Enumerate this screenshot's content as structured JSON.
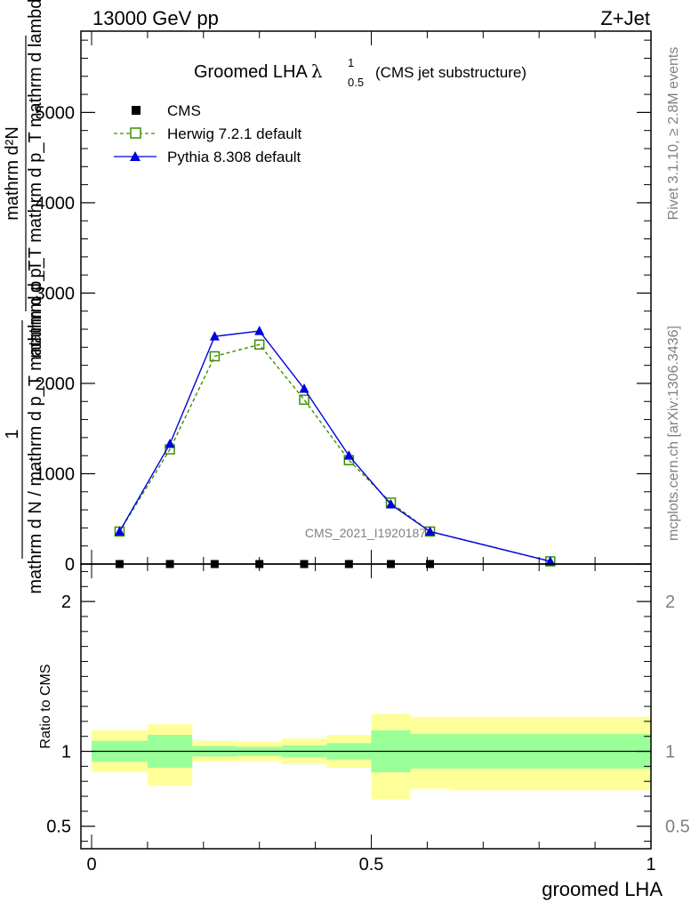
{
  "header": {
    "left": "13000 GeV pp",
    "right": "Z+Jet"
  },
  "side": {
    "rivet": "Rivet 3.1.10, ≥ 2.8M events",
    "mcplots": "mcplots.cern.ch [arXiv:1306.3436]"
  },
  "watermark": "CMS_2021_I1920187",
  "chart_data": [
    {
      "type": "line",
      "title": "Groomed LHA",
      "title_symbol": "λ",
      "title_sup": "1",
      "title_sub": "0.5",
      "title_note": "(CMS jet substructure)",
      "ylabel_line1": "mathrm d²N",
      "ylabel_line2": "mathrm d p_T mathrm d p_T mathrm d lambda",
      "ylabel_pre": "1",
      "ylabel_line3": "mathrm d N / mathrm d p_T mathrm d p_T",
      "xlim": [
        0,
        1
      ],
      "ylim": [
        0,
        5900
      ],
      "yticks": [
        0,
        1000,
        2000,
        3000,
        4000,
        5000
      ],
      "ytick_labels": [
        "0",
        "1000",
        "2000",
        "3000",
        "4000",
        "5000"
      ],
      "legend_position": "top-left",
      "series": [
        {
          "name": "CMS",
          "color": "#000000",
          "marker": "square",
          "x": [
            0.05,
            0.14,
            0.22,
            0.3,
            0.38,
            0.46,
            0.535,
            0.605
          ],
          "y": [
            0,
            0,
            0,
            0,
            0,
            0,
            0,
            0
          ]
        },
        {
          "name": "Herwig 7.2.1 default",
          "color": "#3a8f00",
          "marker": "open-square",
          "dashed": true,
          "x": [
            0.05,
            0.14,
            0.22,
            0.3,
            0.38,
            0.46,
            0.535,
            0.605,
            0.82
          ],
          "y": [
            360,
            1270,
            2300,
            2430,
            1820,
            1150,
            680,
            360,
            30
          ]
        },
        {
          "name": "Pythia 8.308 default",
          "color": "#0000dd",
          "marker": "triangle",
          "x": [
            0.05,
            0.14,
            0.22,
            0.3,
            0.38,
            0.46,
            0.535,
            0.605,
            0.82
          ],
          "y": [
            360,
            1330,
            2520,
            2580,
            1940,
            1200,
            660,
            360,
            30
          ]
        }
      ]
    },
    {
      "type": "area",
      "ylabel": "Ratio to CMS",
      "xlabel": "groomed LHA",
      "xlim": [
        0,
        1
      ],
      "ylim": [
        0.35,
        2.25
      ],
      "xticks": [
        0,
        0.5,
        1
      ],
      "xtick_labels": [
        "0",
        "0.5",
        "1"
      ],
      "ytick_labels": [
        "0.5",
        "1",
        "2"
      ],
      "bins": [
        {
          "x0": 0.0,
          "x1": 0.1,
          "inner": [
            0.93,
            1.07
          ],
          "outer": [
            0.86,
            1.14
          ]
        },
        {
          "x0": 0.1,
          "x1": 0.18,
          "inner": [
            0.89,
            1.11
          ],
          "outer": [
            0.77,
            1.18
          ]
        },
        {
          "x0": 0.18,
          "x1": 0.26,
          "inner": [
            0.965,
            1.035
          ],
          "outer": [
            0.93,
            1.07
          ]
        },
        {
          "x0": 0.26,
          "x1": 0.34,
          "inner": [
            0.97,
            1.03
          ],
          "outer": [
            0.935,
            1.065
          ]
        },
        {
          "x0": 0.34,
          "x1": 0.42,
          "inner": [
            0.96,
            1.04
          ],
          "outer": [
            0.915,
            1.085
          ]
        },
        {
          "x0": 0.42,
          "x1": 0.5,
          "inner": [
            0.945,
            1.055
          ],
          "outer": [
            0.89,
            1.11
          ]
        },
        {
          "x0": 0.5,
          "x1": 0.57,
          "inner": [
            0.86,
            1.14
          ],
          "outer": [
            0.68,
            1.25
          ]
        },
        {
          "x0": 0.57,
          "x1": 0.64,
          "inner": [
            0.885,
            1.115
          ],
          "outer": [
            0.75,
            1.23
          ]
        },
        {
          "x0": 0.64,
          "x1": 1.0,
          "inner": [
            0.885,
            1.115
          ],
          "outer": [
            0.74,
            1.23
          ]
        }
      ],
      "reference": 1,
      "inner_color": "#99ff99",
      "outer_color": "#ffff99"
    }
  ]
}
